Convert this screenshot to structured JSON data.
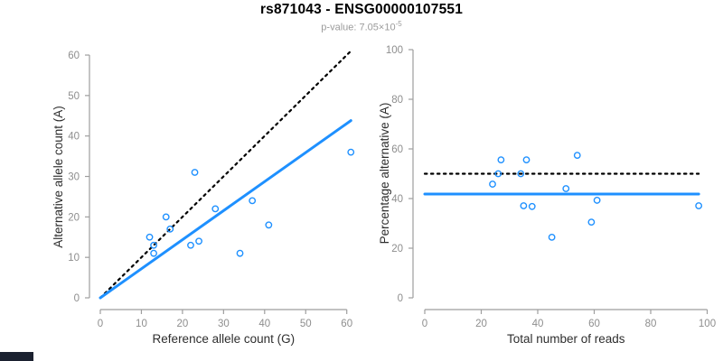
{
  "header": {
    "title": "rs871043 - ENSG00000107551",
    "pvalue_prefix": "p-value: 7.05×10",
    "pvalue_exponent": "-5"
  },
  "theme": {
    "accent_blue": "#1E90FF",
    "dotted_line_black": "#000000",
    "axis_gray": "#9e9e9e",
    "tick_text_gray": "#8e8e8e",
    "axis_label_dark": "#2e2e2e",
    "title_black": "#000000",
    "subtitle_gray": "#9b9b9b"
  },
  "chart_data": [
    {
      "name": "allele-counts",
      "type": "scatter",
      "xlabel": "Reference allele count (G)",
      "ylabel": "Alternative allele count (A)",
      "xlim": [
        0,
        60
      ],
      "ylim": [
        0,
        60
      ],
      "xticks": [
        0,
        10,
        20,
        30,
        40,
        50,
        60
      ],
      "yticks": [
        0,
        10,
        20,
        30,
        40,
        50,
        60
      ],
      "grid": false,
      "points": [
        [
          12,
          15
        ],
        [
          13,
          13
        ],
        [
          13,
          11
        ],
        [
          16,
          20
        ],
        [
          17,
          17
        ],
        [
          22,
          13
        ],
        [
          23,
          31
        ],
        [
          24,
          14
        ],
        [
          28,
          22
        ],
        [
          34,
          11
        ],
        [
          37,
          24
        ],
        [
          41,
          18
        ],
        [
          61,
          36
        ]
      ],
      "lines": [
        {
          "name": "identity-line",
          "style": "dotted",
          "color": "#000000",
          "width": 2.2,
          "from": [
            0,
            0
          ],
          "to": [
            61,
            61
          ]
        },
        {
          "name": "fit-line",
          "style": "solid",
          "color": "#1E90FF",
          "width": 3,
          "from": [
            0,
            0
          ],
          "to": [
            61,
            43.8
          ]
        }
      ]
    },
    {
      "name": "percentage-alternative",
      "type": "scatter",
      "xlabel": "Total number of reads",
      "ylabel": "Percentage alternative (A)",
      "xlim": [
        0,
        100
      ],
      "ylim": [
        0,
        100
      ],
      "xticks": [
        0,
        20,
        40,
        60,
        80,
        100
      ],
      "yticks": [
        0,
        20,
        40,
        60,
        80,
        100
      ],
      "grid": false,
      "points": [
        [
          27,
          55.6
        ],
        [
          26,
          50
        ],
        [
          24,
          45.8
        ],
        [
          36,
          55.6
        ],
        [
          34,
          50
        ],
        [
          35,
          37.1
        ],
        [
          54,
          57.4
        ],
        [
          38,
          36.8
        ],
        [
          50,
          44
        ],
        [
          45,
          24.4
        ],
        [
          61,
          39.3
        ],
        [
          59,
          30.5
        ],
        [
          97,
          37.1
        ]
      ],
      "lines": [
        {
          "name": "expected-50pct-line",
          "style": "dotted",
          "color": "#000000",
          "width": 2.2,
          "from": [
            0,
            50
          ],
          "to": [
            97,
            50
          ]
        },
        {
          "name": "fit-line",
          "style": "solid",
          "color": "#1E90FF",
          "width": 3,
          "from": [
            0,
            41.8
          ],
          "to": [
            97,
            41.8
          ]
        }
      ]
    }
  ]
}
